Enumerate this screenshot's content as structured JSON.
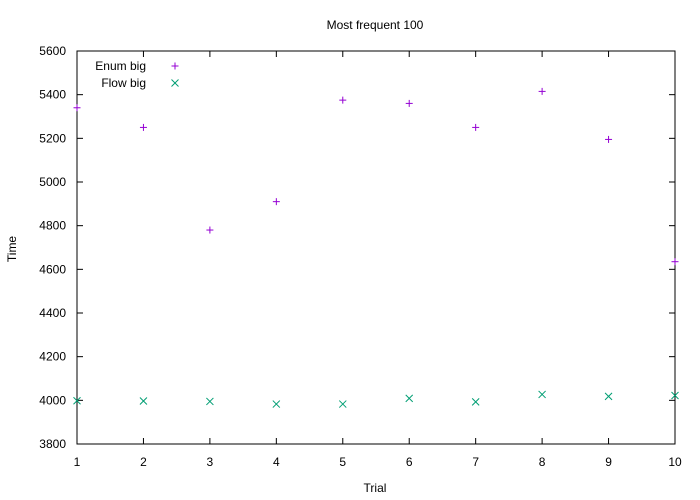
{
  "chart_data": {
    "type": "scatter",
    "title": "Most frequent 100",
    "xlabel": "Trial",
    "ylabel": "Time",
    "xlim": [
      1,
      10
    ],
    "ylim": [
      3800,
      5600
    ],
    "xticks": [
      1,
      2,
      3,
      4,
      5,
      6,
      7,
      8,
      9,
      10
    ],
    "yticks": [
      3800,
      4000,
      4200,
      4400,
      4600,
      4800,
      5000,
      5200,
      5400,
      5600
    ],
    "grid": false,
    "legend_position": "top-left",
    "series": [
      {
        "name": "Enum big",
        "marker": "plus",
        "color": "#9400d3",
        "x": [
          1,
          2,
          3,
          4,
          5,
          6,
          7,
          8,
          9,
          10
        ],
        "y": [
          5340,
          5250,
          4780,
          4910,
          5375,
          5360,
          5250,
          5415,
          5195,
          4635
        ]
      },
      {
        "name": "Flow big",
        "marker": "cross",
        "color": "#009e73",
        "x": [
          1,
          2,
          3,
          4,
          5,
          6,
          7,
          8,
          9,
          10
        ],
        "y": [
          3998,
          3997,
          3995,
          3983,
          3983,
          4009,
          3993,
          4027,
          4018,
          4022
        ]
      }
    ]
  }
}
